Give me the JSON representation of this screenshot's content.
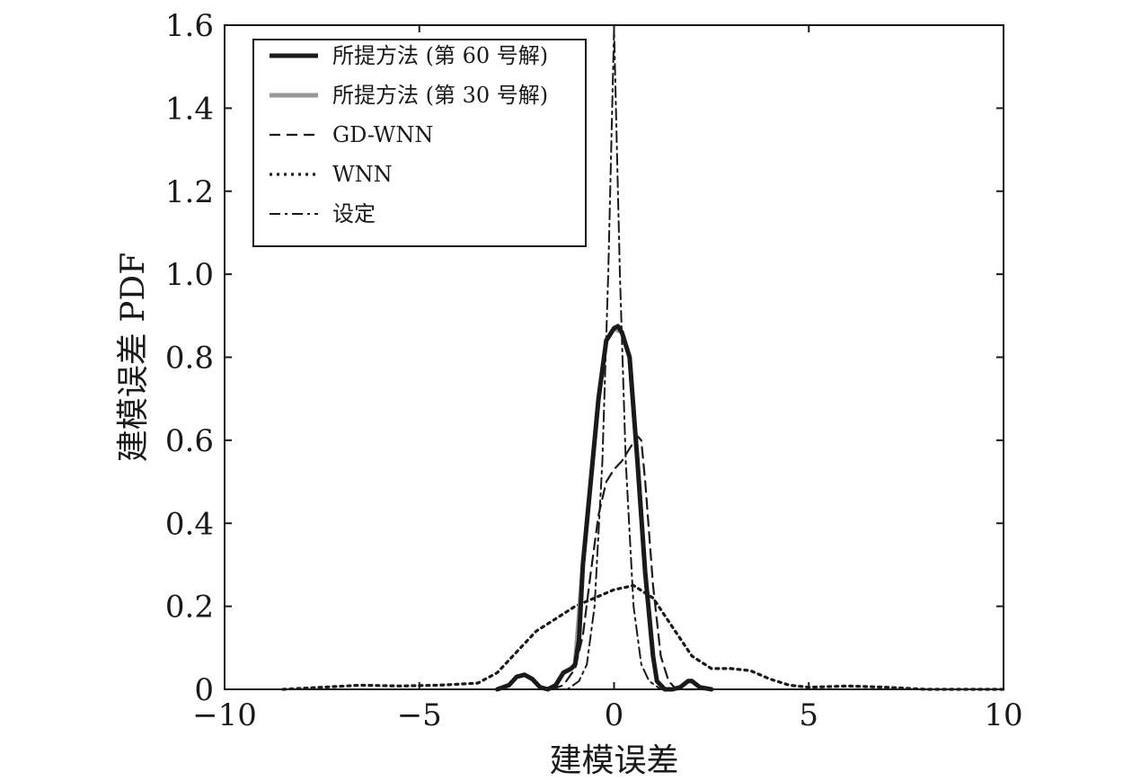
{
  "chart_data": {
    "type": "line",
    "title": "",
    "xlabel": "建模误差",
    "ylabel": "建模误差 PDF",
    "xlim": [
      -10,
      10
    ],
    "ylim": [
      0,
      1.6
    ],
    "xticks": [
      -10,
      -5,
      0,
      5,
      10
    ],
    "xtick_labels": [
      "−10",
      "−5",
      "0",
      "5",
      "10"
    ],
    "yticks": [
      0,
      0.2,
      0.4,
      0.6,
      0.8,
      1.0,
      1.2,
      1.4,
      1.6
    ],
    "ytick_labels": [
      "0",
      "0.2",
      "0.4",
      "0.6",
      "0.8",
      "1.0",
      "1.2",
      "1.4",
      "1.6"
    ],
    "grid": false,
    "legend_position": "top-left",
    "series": [
      {
        "name": "所提方法 (第 60 号解)",
        "color": "#1a1a1a",
        "style": "solid-thick",
        "x": [
          -3.0,
          -2.7,
          -2.5,
          -2.3,
          -2.1,
          -1.9,
          -1.7,
          -1.5,
          -1.3,
          -1.1,
          -1.0,
          -0.9,
          -0.8,
          -0.6,
          -0.4,
          -0.2,
          0.0,
          0.1,
          0.2,
          0.4,
          0.6,
          0.8,
          1.0,
          1.1,
          1.3,
          1.5,
          1.7,
          1.9,
          2.0,
          2.2,
          2.5
        ],
        "y": [
          0.0,
          0.01,
          0.03,
          0.035,
          0.025,
          0.005,
          0.0,
          0.01,
          0.04,
          0.05,
          0.06,
          0.12,
          0.3,
          0.5,
          0.7,
          0.84,
          0.87,
          0.875,
          0.86,
          0.8,
          0.55,
          0.28,
          0.08,
          0.02,
          0.0,
          0.0,
          0.005,
          0.02,
          0.02,
          0.005,
          0.0
        ]
      },
      {
        "name": "所提方法 (第 30 号解)",
        "color": "#999999",
        "style": "solid-thick",
        "x": [
          -1.0,
          -0.8,
          -0.6,
          -0.4,
          -0.2,
          0.0,
          0.2,
          0.4,
          0.6,
          0.8,
          1.0
        ],
        "y": [
          0.06,
          0.3,
          0.5,
          0.7,
          0.84,
          0.87,
          0.86,
          0.8,
          0.55,
          0.28,
          0.08
        ]
      },
      {
        "name": "GD-WNN",
        "color": "#1a1a1a",
        "style": "dashed",
        "x": [
          -1.6,
          -1.3,
          -1.0,
          -0.8,
          -0.6,
          -0.4,
          -0.2,
          0.0,
          0.2,
          0.4,
          0.6,
          0.7,
          0.8,
          1.0,
          1.2,
          1.4,
          1.6,
          2.0,
          2.5
        ],
        "y": [
          0.0,
          0.01,
          0.05,
          0.13,
          0.28,
          0.42,
          0.5,
          0.53,
          0.55,
          0.58,
          0.61,
          0.6,
          0.5,
          0.25,
          0.08,
          0.02,
          0.0,
          0.0,
          0.0
        ]
      },
      {
        "name": "WNN",
        "color": "#1a1a1a",
        "style": "dotted",
        "x": [
          -8.5,
          -7.5,
          -6.5,
          -5.5,
          -4.5,
          -3.5,
          -3.0,
          -2.5,
          -2.0,
          -1.5,
          -1.0,
          -0.5,
          0.0,
          0.5,
          1.0,
          1.5,
          2.0,
          2.5,
          3.0,
          3.5,
          4.0,
          4.5,
          5.0,
          6.0,
          7.0,
          8.0,
          10.0
        ],
        "y": [
          0.0,
          0.005,
          0.01,
          0.008,
          0.01,
          0.015,
          0.04,
          0.09,
          0.14,
          0.17,
          0.2,
          0.22,
          0.24,
          0.25,
          0.22,
          0.15,
          0.08,
          0.05,
          0.05,
          0.045,
          0.025,
          0.01,
          0.005,
          0.008,
          0.005,
          0.0,
          0.0
        ]
      },
      {
        "name": "设定",
        "color": "#1a1a1a",
        "style": "dashdot",
        "x": [
          -1.6,
          -1.2,
          -0.9,
          -0.7,
          -0.5,
          -0.3,
          -0.15,
          0.0,
          0.15,
          0.3,
          0.5,
          0.7,
          0.9,
          1.2,
          1.6
        ],
        "y": [
          0.0,
          0.0,
          0.02,
          0.06,
          0.2,
          0.55,
          1.0,
          1.59,
          1.0,
          0.55,
          0.2,
          0.06,
          0.02,
          0.0,
          0.0
        ]
      }
    ]
  }
}
